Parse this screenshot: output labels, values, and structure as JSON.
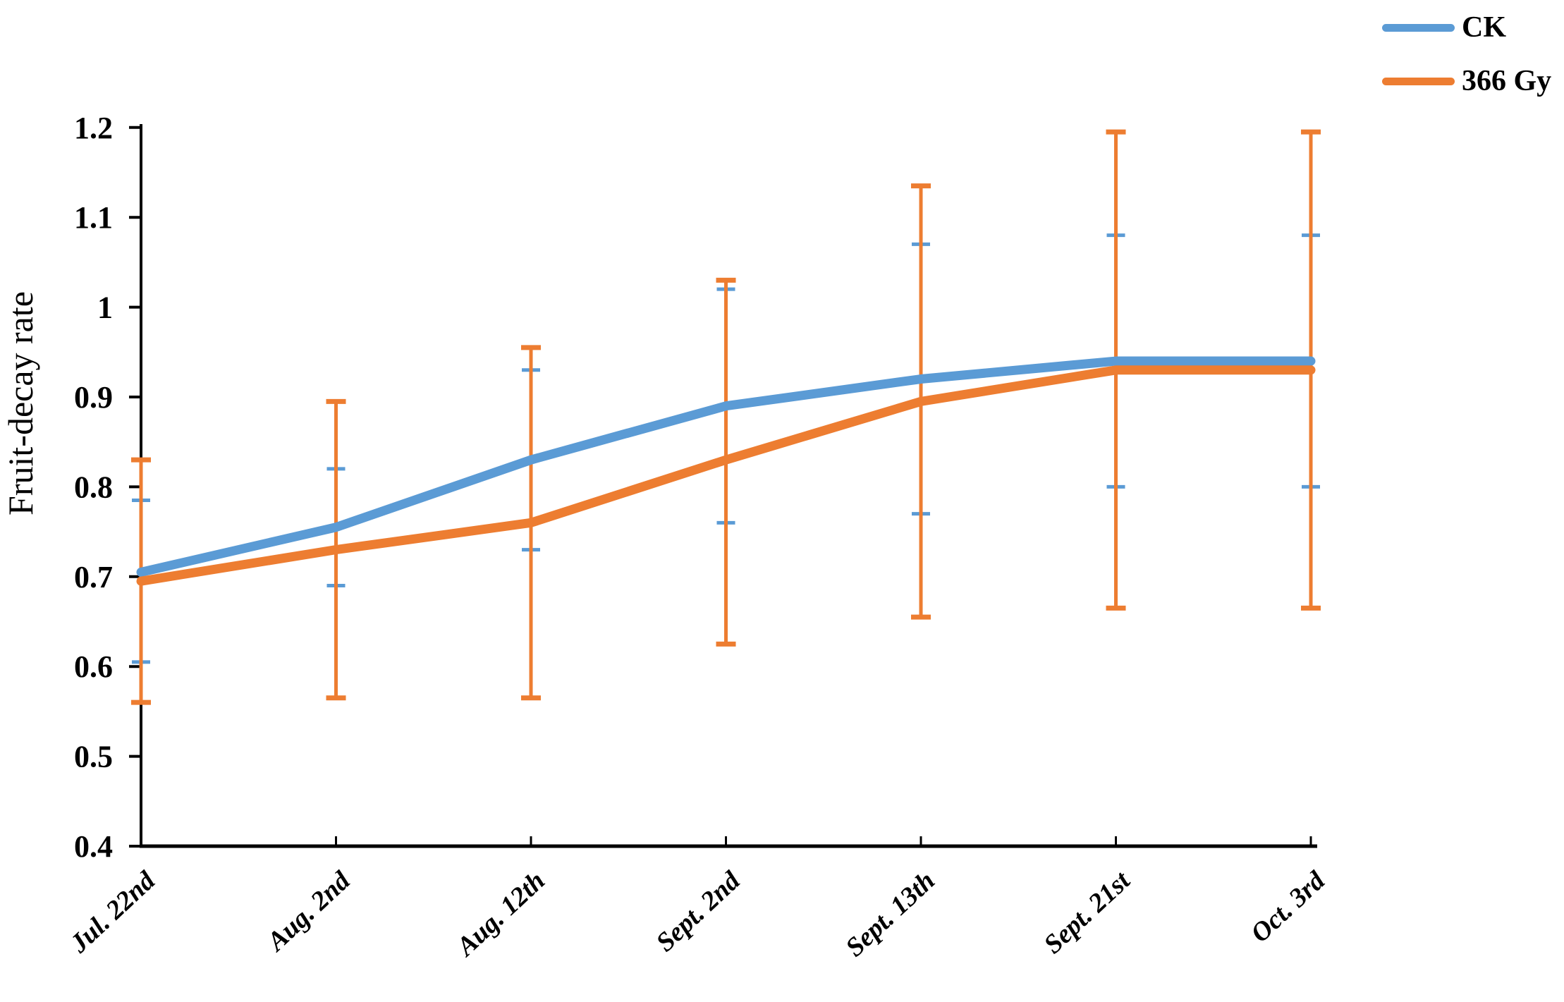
{
  "chart_data": {
    "type": "line",
    "title": "",
    "xlabel": "",
    "ylabel": "Fruit-decay rate",
    "categories": [
      "Jul. 22nd",
      "Aug. 2nd",
      "Aug. 12th",
      "Sept. 2nd",
      "Sept. 13th",
      "Sept. 21st",
      "Oct. 3rd"
    ],
    "ylim": [
      0.4,
      1.2
    ],
    "yticks": [
      1.2,
      1.1,
      1,
      0.9,
      0.8,
      0.7,
      0.6,
      0.5,
      0.4
    ],
    "ytick_labels": [
      "1.2",
      "1.1",
      "1",
      "0.9",
      "0.8",
      "0.7",
      "0.6",
      "0.5",
      "0.4"
    ],
    "grid": false,
    "legend_position": "top-right",
    "axis_color": "#000000",
    "background_color": "#ffffff",
    "series": [
      {
        "name": "CK",
        "color": "#5B9BD5",
        "values": [
          0.705,
          0.755,
          0.83,
          0.89,
          0.92,
          0.94,
          0.94
        ],
        "error_upper": [
          0.785,
          0.82,
          0.93,
          1.02,
          1.07,
          1.08,
          1.08
        ],
        "error_lower": [
          0.605,
          0.69,
          0.73,
          0.76,
          0.77,
          0.8,
          0.8
        ]
      },
      {
        "name": "366 Gy",
        "color": "#ED7D31",
        "values": [
          0.695,
          0.73,
          0.76,
          0.83,
          0.895,
          0.93,
          0.93
        ],
        "error_upper": [
          0.83,
          0.895,
          0.955,
          1.03,
          1.135,
          1.195,
          1.195
        ],
        "error_lower": [
          0.56,
          0.565,
          0.565,
          0.625,
          0.655,
          0.665,
          0.665
        ]
      }
    ]
  }
}
